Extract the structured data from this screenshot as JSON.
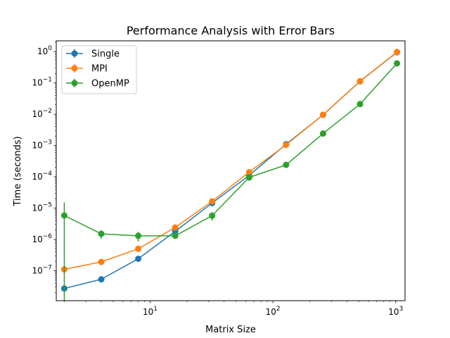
{
  "chart_data": {
    "type": "line",
    "title": "Performance Analysis with Error Bars",
    "xlabel": "Matrix Size",
    "ylabel": "Time (seconds)",
    "xscale": "log",
    "yscale": "log",
    "xlim": [
      1.72,
      1190
    ],
    "ylim": [
      1.1e-08,
      2.2
    ],
    "grid": false,
    "legend_position": "upper left",
    "x": [
      2,
      4,
      8,
      16,
      32,
      64,
      128,
      256,
      512,
      1024
    ],
    "series": [
      {
        "name": "Single",
        "color": "#1f77b4",
        "marker": "circle",
        "values": [
          2.7e-08,
          5.3e-08,
          2.4e-07,
          1.8e-06,
          1.45e-05,
          0.00011,
          0.0011,
          0.0095,
          0.112,
          0.95
        ],
        "errors": [
          0,
          0,
          0,
          0,
          0,
          0,
          0,
          0,
          0,
          0
        ]
      },
      {
        "name": "MPI",
        "color": "#ff7f0e",
        "marker": "circle",
        "values": [
          1.1e-07,
          1.9e-07,
          5e-07,
          2.4e-06,
          1.65e-05,
          0.00014,
          0.00105,
          0.0096,
          0.113,
          0.97
        ],
        "errors": [
          0,
          0,
          0,
          0,
          0,
          0,
          0,
          0,
          0,
          0
        ]
      },
      {
        "name": "OpenMP",
        "color": "#2ca02c",
        "marker": "circle",
        "values": [
          5.8e-06,
          1.5e-06,
          1.3e-06,
          1.3e-06,
          5.7e-06,
          9.5e-05,
          0.00024,
          0.0024,
          0.021,
          0.42
        ],
        "errors": [
          9.5e-06,
          4.5e-07,
          4.5e-07,
          0,
          1.7e-06,
          0,
          0,
          0,
          0,
          0
        ]
      }
    ],
    "x_ticks": [
      {
        "value": 10,
        "label": "10",
        "exp": "1"
      },
      {
        "value": 100,
        "label": "10",
        "exp": "2"
      },
      {
        "value": 1000,
        "label": "10",
        "exp": "3"
      }
    ],
    "y_ticks": [
      {
        "value": 1e-07,
        "label": "10",
        "exp": "−7"
      },
      {
        "value": 1e-06,
        "label": "10",
        "exp": "−6"
      },
      {
        "value": 1e-05,
        "label": "10",
        "exp": "−5"
      },
      {
        "value": 0.0001,
        "label": "10",
        "exp": "−4"
      },
      {
        "value": 0.001,
        "label": "10",
        "exp": "−3"
      },
      {
        "value": 0.01,
        "label": "10",
        "exp": "−2"
      },
      {
        "value": 0.1,
        "label": "10",
        "exp": "−1"
      },
      {
        "value": 1,
        "label": "10",
        "exp": "0"
      }
    ]
  }
}
